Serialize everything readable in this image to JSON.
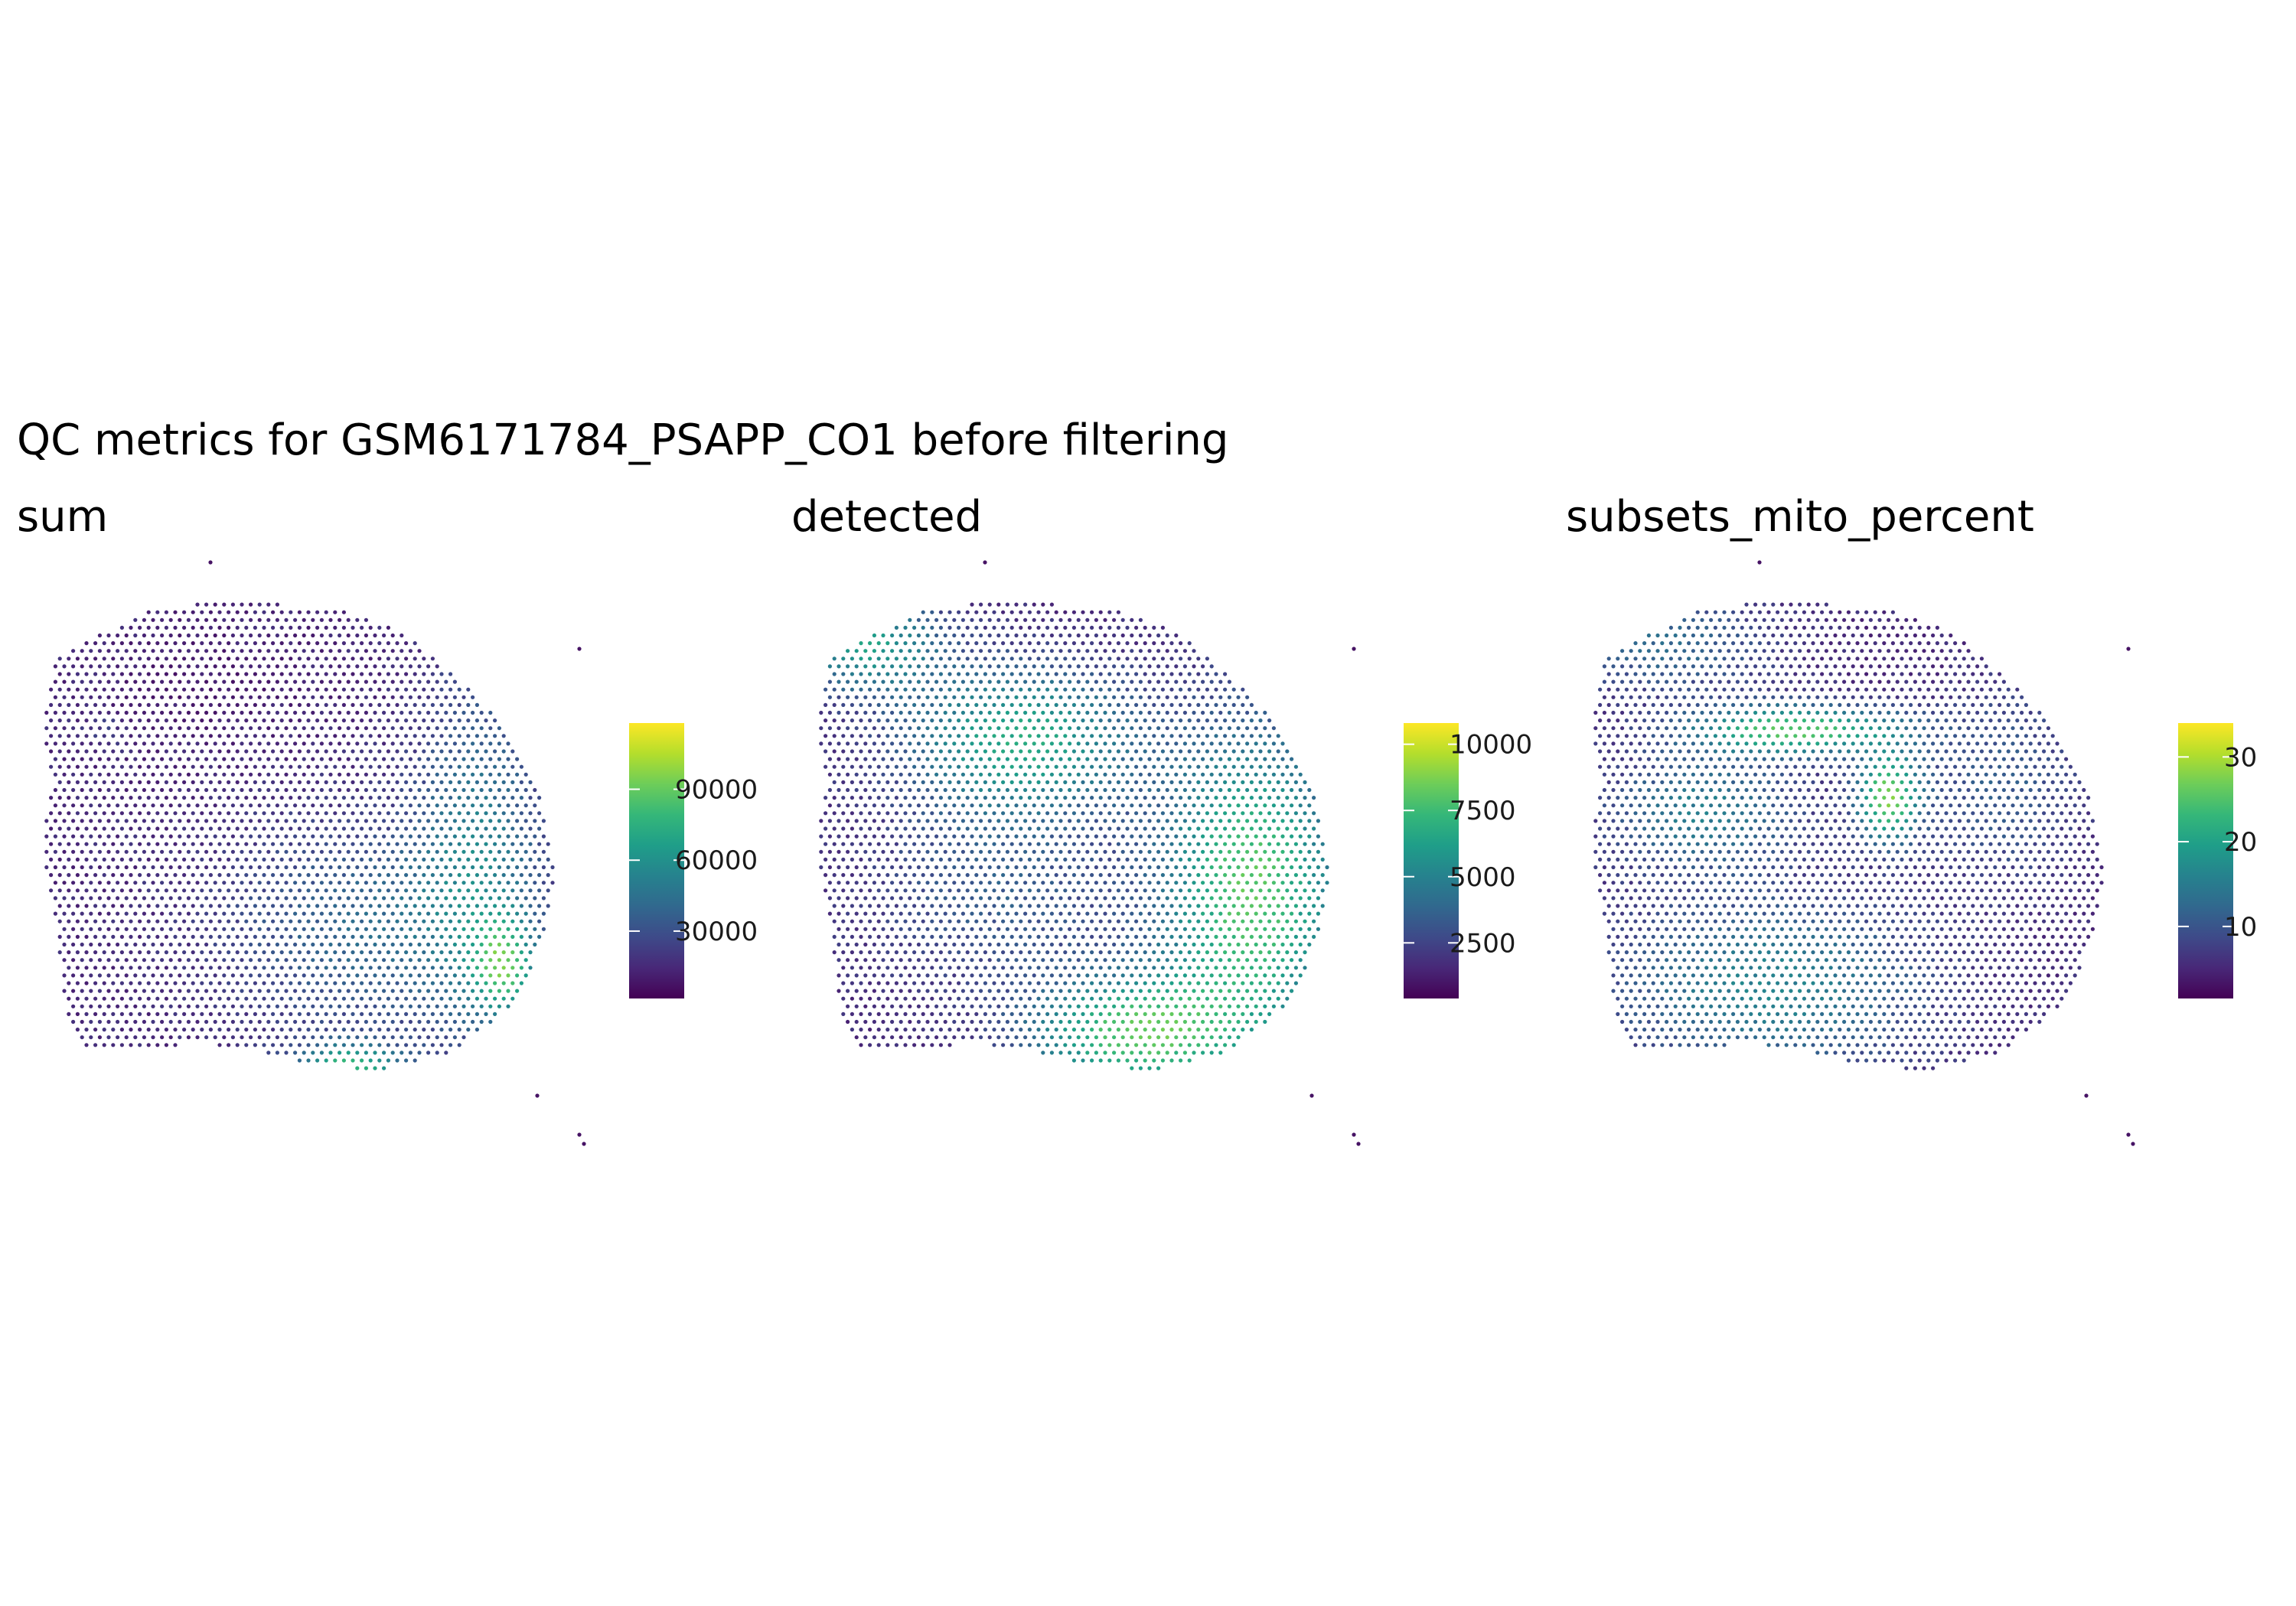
{
  "title": "QC metrics for GSM6171784_PSAPP_CO1 before filtering",
  "colormap": [
    "#440154",
    "#482878",
    "#3E4A89",
    "#31688E",
    "#26828E",
    "#1F9E89",
    "#35B779",
    "#6DCD59",
    "#B4DE2C",
    "#FDE725"
  ],
  "chart_data": [
    {
      "type": "scatter",
      "title": "sum",
      "legend_placement": "right",
      "color_range": [
        1500,
        118000
      ],
      "color_ticks": [
        30000,
        60000,
        90000
      ],
      "color_tick_labels": [
        "30000",
        "60000",
        "90000"
      ],
      "hotspots": [
        {
          "cx": 0.12,
          "cy": 0.28,
          "rx": 0.05,
          "ry": 0.04,
          "value": 25000
        },
        {
          "cx": 0.62,
          "cy": 0.7,
          "rx": 0.26,
          "ry": 0.22,
          "value": 45000
        },
        {
          "cx": 0.85,
          "cy": 0.55,
          "rx": 0.12,
          "ry": 0.35,
          "value": 55000
        },
        {
          "cx": 0.9,
          "cy": 0.78,
          "rx": 0.06,
          "ry": 0.1,
          "value": 80000
        },
        {
          "cx": 0.6,
          "cy": 0.99,
          "rx": 0.1,
          "ry": 0.05,
          "value": 85000
        },
        {
          "cx": 0.3,
          "cy": 0.18,
          "rx": 0.2,
          "ry": 0.15,
          "value": 10000
        }
      ]
    },
    {
      "type": "scatter",
      "title": "detected",
      "legend_placement": "right",
      "color_range": [
        400,
        10800
      ],
      "color_ticks": [
        2500,
        5000,
        7500,
        10000
      ],
      "color_tick_labels": [
        "2500",
        "5000",
        "7500",
        "10000"
      ],
      "hotspots": [
        {
          "cx": 0.4,
          "cy": 0.3,
          "rx": 0.22,
          "ry": 0.15,
          "value": 7500
        },
        {
          "cx": 0.85,
          "cy": 0.62,
          "rx": 0.17,
          "ry": 0.32,
          "value": 9300
        },
        {
          "cx": 0.62,
          "cy": 0.92,
          "rx": 0.2,
          "ry": 0.12,
          "value": 9000
        },
        {
          "cx": 0.1,
          "cy": 0.1,
          "rx": 0.14,
          "ry": 0.1,
          "value": 6800
        },
        {
          "cx": 0.35,
          "cy": 0.62,
          "rx": 0.25,
          "ry": 0.2,
          "value": 3700
        }
      ]
    },
    {
      "type": "scatter",
      "title": "subsets_mito_percent",
      "legend_placement": "right",
      "color_range": [
        1.5,
        34
      ],
      "color_ticks": [
        10,
        20,
        30
      ],
      "color_tick_labels": [
        "10",
        "20",
        "30"
      ],
      "hotspots": [
        {
          "cx": 0.4,
          "cy": 0.28,
          "rx": 0.2,
          "ry": 0.05,
          "value": 29
        },
        {
          "cx": 0.58,
          "cy": 0.42,
          "rx": 0.06,
          "ry": 0.09,
          "value": 31
        },
        {
          "cx": 0.22,
          "cy": 0.45,
          "rx": 0.18,
          "ry": 0.12,
          "value": 17
        },
        {
          "cx": 0.35,
          "cy": 0.82,
          "rx": 0.3,
          "ry": 0.18,
          "value": 18
        },
        {
          "cx": 0.15,
          "cy": 0.1,
          "rx": 0.2,
          "ry": 0.1,
          "value": 14
        },
        {
          "cx": 0.8,
          "cy": 0.4,
          "rx": 0.15,
          "ry": 0.2,
          "value": 12
        }
      ]
    }
  ]
}
